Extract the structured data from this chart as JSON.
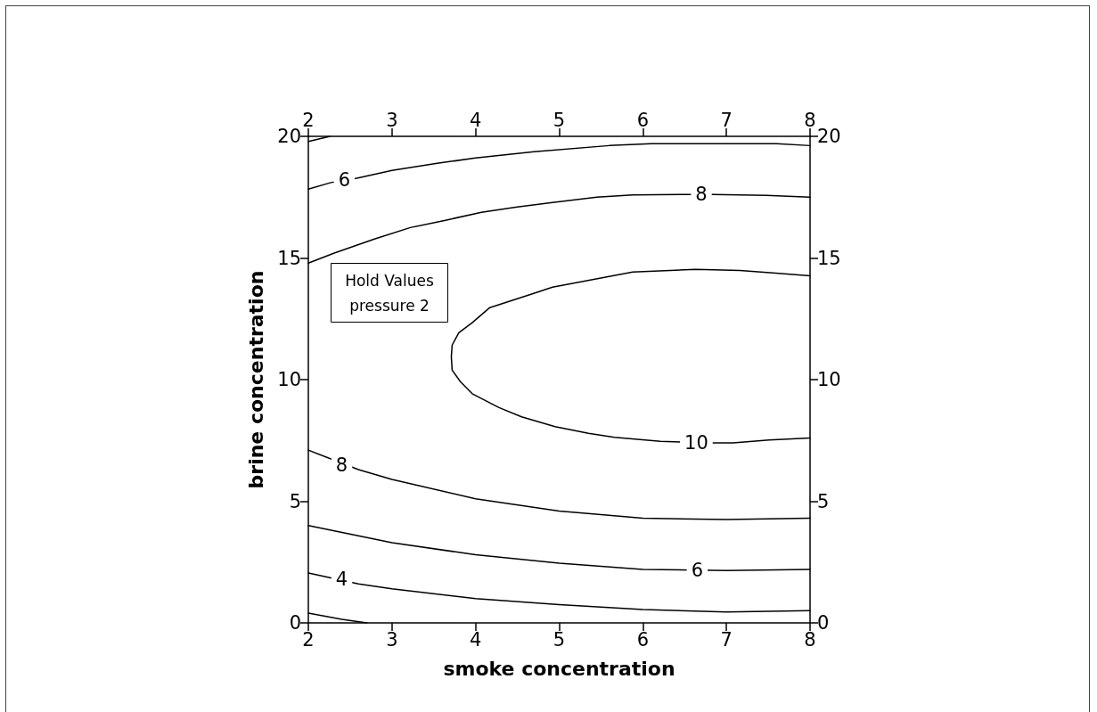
{
  "chart_data": {
    "type": "line",
    "xlabel": "smoke concentration",
    "ylabel": "brine concentration",
    "series": [
      {
        "color": "#000000",
        "x": [
          2,
          2.26
        ],
        "values": [
          19.79,
          20
        ]
      },
      {
        "color": "#000000",
        "x": [
          2,
          2.27,
          2.58,
          3,
          3.54,
          4,
          4.7,
          5.6,
          6.1,
          7.6,
          8
        ],
        "values": [
          17.83,
          18.1,
          18.28,
          18.6,
          18.89,
          19.11,
          19.37,
          19.62,
          19.7,
          19.7,
          19.62
        ]
      },
      {
        "color": "#000000",
        "x": [
          2,
          2.31,
          2.79,
          3.22,
          3.64,
          4.07,
          4.5,
          4.92,
          5.45,
          5.88,
          6.57,
          6.83,
          7.48,
          8
        ],
        "values": [
          14.79,
          15.2,
          15.78,
          16.25,
          16.55,
          16.88,
          17.1,
          17.28,
          17.5,
          17.59,
          17.61,
          17.61,
          17.57,
          17.5
        ]
      },
      {
        "color": "#000000",
        "x": [
          8,
          7.59,
          7.16,
          6.63,
          5.88,
          4.92,
          4.63,
          4.17,
          3.96,
          3.8,
          3.72,
          3.71,
          3.72,
          3.82,
          3.96,
          4.28,
          4.55,
          4.95,
          5.35,
          5.66,
          6.21,
          6.84,
          7.08,
          7.51,
          8
        ],
        "values": [
          14.27,
          14.38,
          14.49,
          14.53,
          14.42,
          13.8,
          13.47,
          12.96,
          12.34,
          11.93,
          11.42,
          10.94,
          10.39,
          9.91,
          9.42,
          8.85,
          8.47,
          8.07,
          7.79,
          7.63,
          7.46,
          7.4,
          7.4,
          7.52,
          7.6
        ]
      },
      {
        "color": "#000000",
        "x": [
          2,
          2.6,
          3,
          4,
          5,
          6,
          7,
          8
        ],
        "values": [
          7.1,
          6.3,
          5.9,
          5.1,
          4.6,
          4.3,
          4.25,
          4.3
        ]
      },
      {
        "color": "#000000",
        "x": [
          2,
          3,
          4,
          5,
          6,
          7,
          8
        ],
        "values": [
          4.0,
          3.3,
          2.8,
          2.45,
          2.2,
          2.15,
          2.2
        ]
      },
      {
        "color": "#000000",
        "x": [
          2,
          2.6,
          3,
          4,
          5,
          6,
          7,
          8
        ],
        "values": [
          2.05,
          1.6,
          1.4,
          1.0,
          0.75,
          0.55,
          0.45,
          0.5
        ]
      },
      {
        "color": "#000000",
        "x": [
          2,
          2.4,
          2.7
        ],
        "values": [
          0.4,
          0.15,
          0
        ]
      }
    ],
    "xlim": [
      2,
      8
    ],
    "xticks": [
      2,
      3,
      4,
      5,
      6,
      7,
      8
    ],
    "x2lim": [
      2,
      8
    ],
    "x2ticks": [
      2,
      3,
      4,
      5,
      6,
      7,
      8
    ],
    "ylim": [
      0,
      20
    ],
    "yticks": [
      0,
      5,
      10,
      15,
      20
    ],
    "y2lim": [
      0,
      20
    ],
    "y2ticks": [
      0,
      5,
      10,
      15,
      20
    ],
    "annotations": [
      "Hold Values",
      "pressure 2",
      {
        "text": "6",
        "x": 2.43,
        "y": 18.2
      },
      {
        "text": "8",
        "x": 6.7,
        "y": 17.61
      },
      {
        "text": "10",
        "x": 6.64,
        "y": 7.4
      },
      {
        "text": "8",
        "x": 2.4,
        "y": 6.5
      },
      {
        "text": "6",
        "x": 6.65,
        "y": 2.15
      },
      {
        "text": "4",
        "x": 2.4,
        "y": 1.8
      }
    ]
  }
}
